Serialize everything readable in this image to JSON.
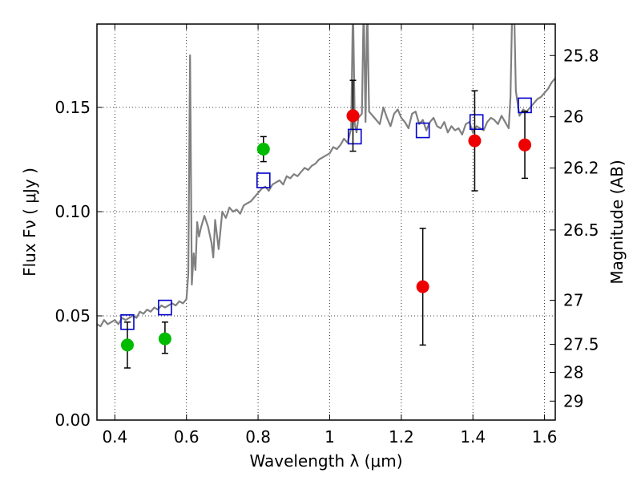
{
  "chart_data": {
    "type": "scatter",
    "xlabel": "Wavelength  λ (μm)",
    "ylabel": "Flux  Fν  ( μJy )",
    "y2label": "Magnitude (AB)",
    "xlim": [
      0.35,
      1.63
    ],
    "ylim": [
      0.0,
      0.19
    ],
    "grid": true,
    "x_ticks": [
      {
        "value": 0.4,
        "label": "0.4"
      },
      {
        "value": 0.6,
        "label": "0.6"
      },
      {
        "value": 0.8,
        "label": "0.8"
      },
      {
        "value": 1.0,
        "label": "1"
      },
      {
        "value": 1.2,
        "label": "1.2"
      },
      {
        "value": 1.4,
        "label": "1.4"
      },
      {
        "value": 1.6,
        "label": "1.6"
      }
    ],
    "y_ticks": [
      {
        "value": 0.0,
        "label": "0.00"
      },
      {
        "value": 0.05,
        "label": "0.05"
      },
      {
        "value": 0.1,
        "label": "0.10"
      },
      {
        "value": 0.15,
        "label": "0.15"
      }
    ],
    "y2_ticks": [
      {
        "flux": 0.1749,
        "label": "25.8"
      },
      {
        "flux": 0.1455,
        "label": "26"
      },
      {
        "flux": 0.1209,
        "label": "26.2"
      },
      {
        "flux": 0.0912,
        "label": "26.5"
      },
      {
        "flux": 0.0575,
        "label": "27"
      },
      {
        "flux": 0.0363,
        "label": "27.5"
      },
      {
        "flux": 0.0229,
        "label": "28"
      },
      {
        "flux": 0.0091,
        "label": "29"
      }
    ],
    "series": [
      {
        "name": "",
        "kind": "line",
        "color": "#808080",
        "x": [
          0.35,
          0.36,
          0.37,
          0.38,
          0.39,
          0.4,
          0.41,
          0.42,
          0.43,
          0.44,
          0.45,
          0.46,
          0.47,
          0.48,
          0.49,
          0.5,
          0.51,
          0.52,
          0.53,
          0.54,
          0.55,
          0.56,
          0.57,
          0.58,
          0.59,
          0.6,
          0.605,
          0.61,
          0.615,
          0.62,
          0.625,
          0.63,
          0.635,
          0.64,
          0.65,
          0.66,
          0.67,
          0.675,
          0.68,
          0.69,
          0.7,
          0.71,
          0.72,
          0.73,
          0.74,
          0.75,
          0.76,
          0.77,
          0.78,
          0.79,
          0.8,
          0.81,
          0.82,
          0.83,
          0.84,
          0.85,
          0.86,
          0.87,
          0.88,
          0.89,
          0.9,
          0.91,
          0.92,
          0.93,
          0.94,
          0.95,
          0.96,
          0.97,
          0.98,
          0.99,
          1.0,
          1.01,
          1.02,
          1.03,
          1.04,
          1.05,
          1.06,
          1.065,
          1.07,
          1.075,
          1.08,
          1.09,
          1.095,
          1.1,
          1.105,
          1.11,
          1.12,
          1.13,
          1.14,
          1.15,
          1.16,
          1.17,
          1.18,
          1.19,
          1.2,
          1.21,
          1.22,
          1.23,
          1.24,
          1.25,
          1.26,
          1.27,
          1.28,
          1.29,
          1.3,
          1.31,
          1.32,
          1.33,
          1.34,
          1.35,
          1.36,
          1.37,
          1.38,
          1.39,
          1.4,
          1.41,
          1.42,
          1.43,
          1.44,
          1.45,
          1.46,
          1.47,
          1.48,
          1.49,
          1.5,
          1.505,
          1.51,
          1.515,
          1.52,
          1.53,
          1.54,
          1.55,
          1.56,
          1.57,
          1.58,
          1.59,
          1.6,
          1.61,
          1.62,
          1.63
        ],
        "values": [
          0.046,
          0.045,
          0.048,
          0.046,
          0.047,
          0.048,
          0.046,
          0.049,
          0.048,
          0.049,
          0.05,
          0.049,
          0.052,
          0.051,
          0.053,
          0.052,
          0.054,
          0.053,
          0.055,
          0.054,
          0.055,
          0.056,
          0.055,
          0.057,
          0.056,
          0.058,
          0.07,
          0.175,
          0.065,
          0.08,
          0.072,
          0.095,
          0.088,
          0.092,
          0.098,
          0.093,
          0.085,
          0.078,
          0.096,
          0.082,
          0.1,
          0.097,
          0.102,
          0.1,
          0.101,
          0.099,
          0.103,
          0.104,
          0.105,
          0.107,
          0.109,
          0.111,
          0.112,
          0.11,
          0.113,
          0.114,
          0.115,
          0.113,
          0.117,
          0.116,
          0.118,
          0.117,
          0.119,
          0.121,
          0.12,
          0.122,
          0.123,
          0.125,
          0.126,
          0.127,
          0.128,
          0.131,
          0.13,
          0.132,
          0.135,
          0.133,
          0.14,
          0.2,
          0.142,
          0.138,
          0.145,
          0.147,
          0.2,
          0.143,
          0.2,
          0.148,
          0.146,
          0.144,
          0.142,
          0.15,
          0.145,
          0.141,
          0.147,
          0.149,
          0.145,
          0.143,
          0.14,
          0.147,
          0.148,
          0.142,
          0.144,
          0.139,
          0.143,
          0.145,
          0.141,
          0.14,
          0.143,
          0.138,
          0.141,
          0.139,
          0.14,
          0.137,
          0.142,
          0.143,
          0.138,
          0.141,
          0.14,
          0.139,
          0.143,
          0.145,
          0.144,
          0.142,
          0.146,
          0.143,
          0.14,
          0.155,
          0.2,
          0.2,
          0.158,
          0.146,
          0.149,
          0.148,
          0.15,
          0.152,
          0.154,
          0.155,
          0.157,
          0.159,
          0.162,
          0.164
        ]
      },
      {
        "name": "",
        "kind": "marker-square",
        "color": "#0000cc",
        "x": [
          0.435,
          0.54,
          0.815,
          1.07,
          1.26,
          1.41,
          1.545
        ],
        "values": [
          0.047,
          0.054,
          0.115,
          0.136,
          0.139,
          0.143,
          0.151
        ]
      },
      {
        "name": "",
        "kind": "marker-circle",
        "color": "#00bb00",
        "x": [
          0.435,
          0.54,
          0.815
        ],
        "values": [
          0.036,
          0.039,
          0.13
        ],
        "err_low": [
          0.025,
          0.032,
          0.124
        ],
        "err_high": [
          0.047,
          0.047,
          0.136
        ]
      },
      {
        "name": "",
        "kind": "marker-circle",
        "color": "#ee0000",
        "x": [
          1.065,
          1.26,
          1.405,
          1.545
        ],
        "values": [
          0.146,
          0.064,
          0.134,
          0.132
        ],
        "err_low": [
          0.129,
          0.036,
          0.11,
          0.116
        ],
        "err_high": [
          0.163,
          0.092,
          0.158,
          0.148
        ]
      }
    ]
  }
}
